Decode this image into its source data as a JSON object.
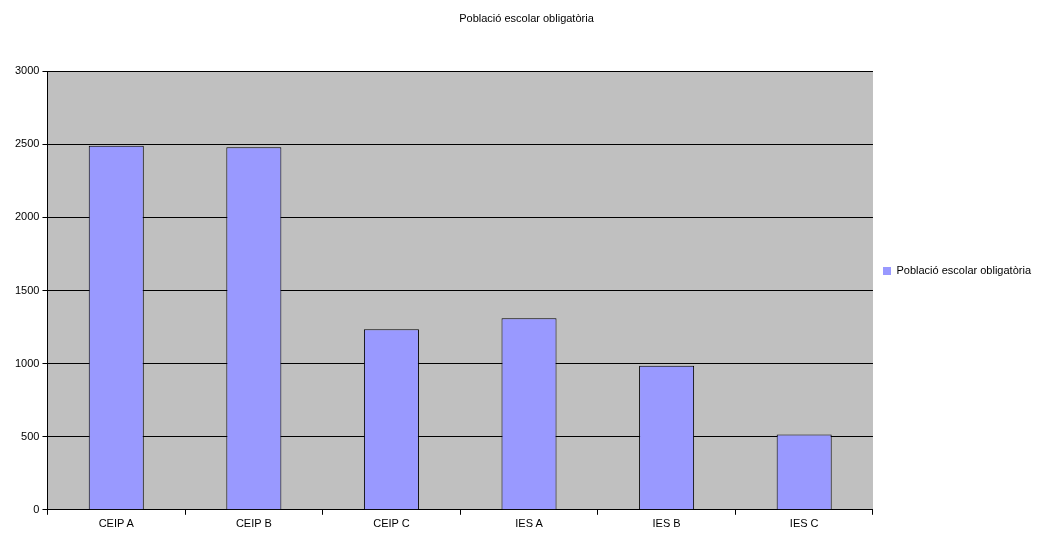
{
  "chart_data": {
    "type": "bar",
    "title": "Població escolar obligatòria",
    "categories": [
      "CEIP A",
      "CEIP B",
      "CEIP C",
      "IES A",
      "IES B",
      "IES C"
    ],
    "series": [
      {
        "name": "Població escolar obligatòria",
        "color": "#9999ff",
        "values": [
          2490,
          2480,
          1235,
          1310,
          985,
          515
        ]
      }
    ],
    "ylim": [
      0,
      3000
    ],
    "yticks": [
      0,
      500,
      1000,
      1500,
      2000,
      2500,
      3000
    ],
    "grid": "y",
    "legend": "right"
  }
}
